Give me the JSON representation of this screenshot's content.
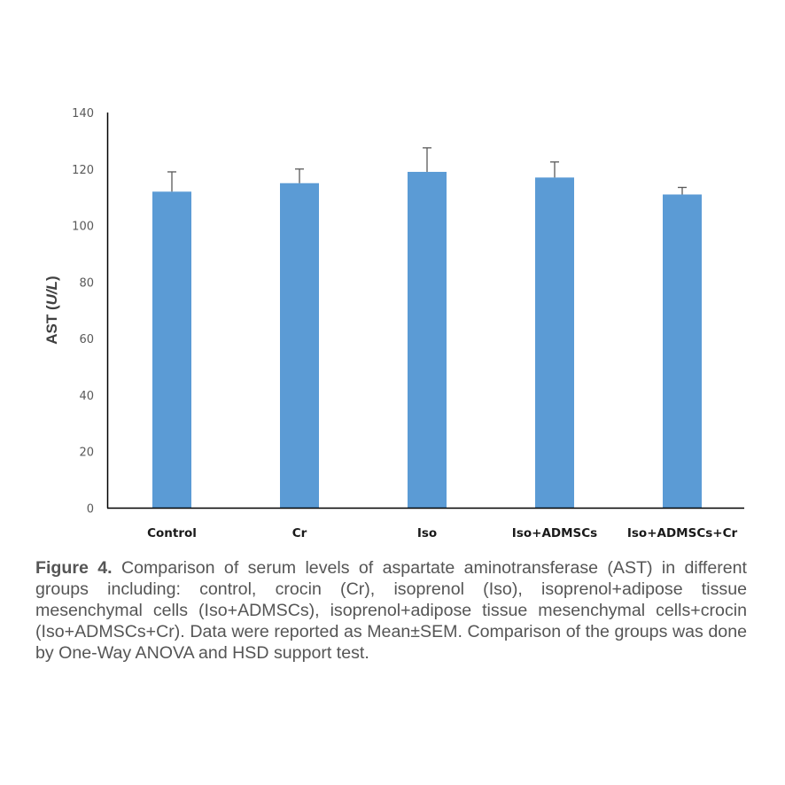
{
  "chart_data": {
    "type": "bar",
    "title": "",
    "xlabel": "",
    "ylabel": "AST (U/L)",
    "ylabel_parts": {
      "plain": "AST (",
      "italic": "U/L",
      "close": ")"
    },
    "ylim": [
      0,
      140
    ],
    "yticks": [
      0,
      20,
      40,
      60,
      80,
      100,
      120,
      140
    ],
    "grid": false,
    "legend": null,
    "categories": [
      "Control",
      "Cr",
      "Iso",
      "Iso+ADMSCs",
      "Iso+ADMSCs+Cr"
    ],
    "values": [
      112,
      115,
      119,
      117,
      111
    ],
    "error_bars_sem": [
      7,
      5,
      8.5,
      5.5,
      2.5
    ],
    "colors": {
      "bar": "#5B9BD5",
      "error_bar": "#595959",
      "axis": "#000000"
    }
  },
  "caption": {
    "label": "Figure 4.",
    "text": " Comparison of serum levels of aspartate aminotransferase (AST) in different groups including: control, crocin (Cr), isoprenol (Iso), isoprenol+adipose tissue mesenchymal cells (Iso+ADMSCs), isoprenol+adipose tissue mesenchymal cells+crocin (Iso+ADMSCs+Cr). Data were reported as Mean±SEM. Comparison of the groups was done by One-Way ANOVA and HSD support test."
  }
}
